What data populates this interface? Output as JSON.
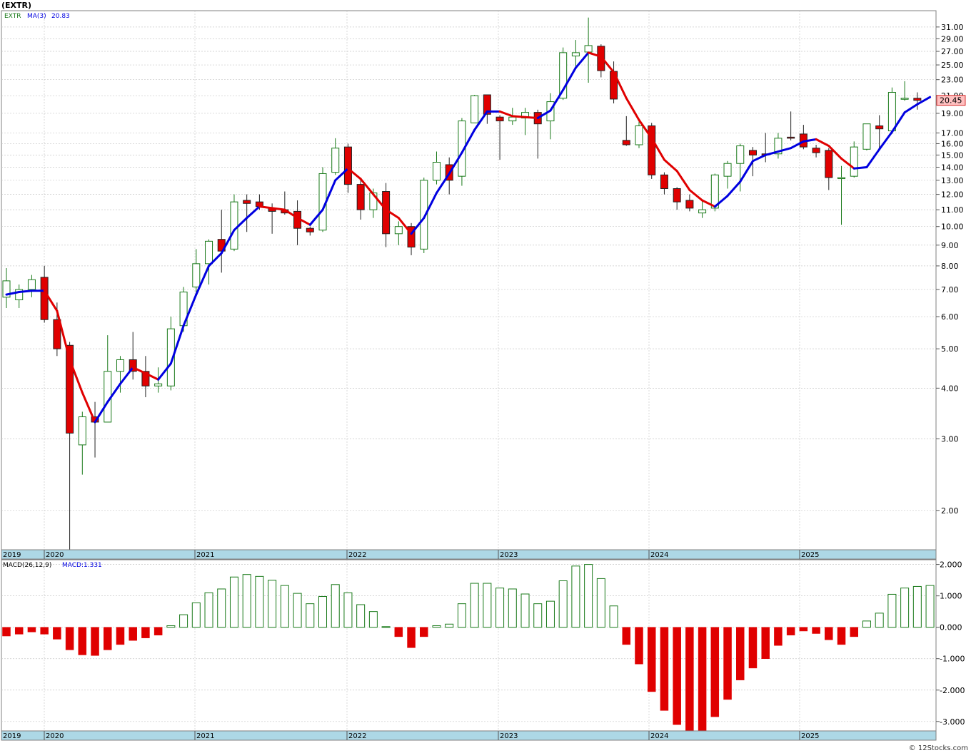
{
  "header": {
    "title": "(EXTR)",
    "symbol": "EXTR",
    "ma_label": "MA(3)",
    "ma_value": "20.83"
  },
  "macd_header": {
    "label": "MACD(26,12,9)",
    "value_label": "MACD:1.331"
  },
  "last_price": "20.45",
  "footer": {
    "credit": "© 12Stocks.com"
  },
  "colors": {
    "up": "#1a7a1a",
    "down": "#e00000",
    "ma_up": "#0000e0",
    "ma_down": "#e00000",
    "axis_band": "#add8e6",
    "grid": "#c8c8c8",
    "price_tag": "#ffc0c0"
  },
  "chart_data": [
    {
      "type": "candlestick",
      "scale": "log",
      "ylim": [
        1.6,
        34
      ],
      "grid": true,
      "y_ticks": [
        {
          "v": 2,
          "label": "2.00"
        },
        {
          "v": 3,
          "label": "3.00"
        },
        {
          "v": 4,
          "label": "4.00"
        },
        {
          "v": 5,
          "label": "5.00"
        },
        {
          "v": 6,
          "label": "6.00"
        },
        {
          "v": 7,
          "label": "7.00"
        },
        {
          "v": 8,
          "label": "8.00"
        },
        {
          "v": 9,
          "label": "9.00"
        },
        {
          "v": 10,
          "label": "10.00"
        },
        {
          "v": 11,
          "label": "11.00"
        },
        {
          "v": 12,
          "label": "12.00"
        },
        {
          "v": 13,
          "label": "13.00"
        },
        {
          "v": 14,
          "label": "14.00"
        },
        {
          "v": 15,
          "label": "15.00"
        },
        {
          "v": 16,
          "label": "16.00"
        },
        {
          "v": 17,
          "label": "17.00"
        },
        {
          "v": 19,
          "label": "19.00"
        },
        {
          "v": 21,
          "label": "21.00"
        },
        {
          "v": 23,
          "label": "23.00"
        },
        {
          "v": 25,
          "label": "25.00"
        },
        {
          "v": 27,
          "label": "27.00"
        },
        {
          "v": 29,
          "label": "29.00"
        },
        {
          "v": 31,
          "label": "31.00"
        }
      ],
      "x_labels": [
        "2019",
        "2020",
        "2021",
        "2022",
        "2023",
        "2024",
        "2025"
      ],
      "candles": [
        {
          "date": "2019-12",
          "o": 6.7,
          "h": 7.9,
          "l": 6.3,
          "c": 7.35
        },
        {
          "date": "2020-01",
          "o": 6.6,
          "h": 7.2,
          "l": 6.3,
          "c": 7.0
        },
        {
          "date": "2020-02",
          "o": 7.0,
          "h": 7.6,
          "l": 6.7,
          "c": 7.4
        },
        {
          "date": "2020-03",
          "o": 7.5,
          "h": 8.0,
          "l": 5.8,
          "c": 5.9
        },
        {
          "date": "2020-04",
          "o": 5.9,
          "h": 6.5,
          "l": 4.8,
          "c": 5.0
        },
        {
          "date": "2020-05",
          "o": 5.1,
          "h": 5.2,
          "l": 1.6,
          "c": 3.1
        },
        {
          "date": "2020-06",
          "o": 2.9,
          "h": 3.5,
          "l": 2.45,
          "c": 3.4
        },
        {
          "date": "2020-07",
          "o": 3.4,
          "h": 3.7,
          "l": 2.7,
          "c": 3.3
        },
        {
          "date": "2020-08",
          "o": 3.3,
          "h": 5.4,
          "l": 3.3,
          "c": 4.4
        },
        {
          "date": "2020-09",
          "o": 4.4,
          "h": 4.8,
          "l": 3.9,
          "c": 4.7
        },
        {
          "date": "2020-10",
          "o": 4.7,
          "h": 5.5,
          "l": 4.2,
          "c": 4.4
        },
        {
          "date": "2020-11",
          "o": 4.4,
          "h": 4.8,
          "l": 3.8,
          "c": 4.05
        },
        {
          "date": "2020-12",
          "o": 4.05,
          "h": 4.5,
          "l": 3.9,
          "c": 4.1
        },
        {
          "date": "2021-01",
          "o": 4.05,
          "h": 6.0,
          "l": 3.95,
          "c": 5.6
        },
        {
          "date": "2021-02",
          "o": 5.7,
          "h": 7.1,
          "l": 5.5,
          "c": 6.9
        },
        {
          "date": "2021-03",
          "o": 7.1,
          "h": 8.8,
          "l": 6.8,
          "c": 8.1
        },
        {
          "date": "2021-04",
          "o": 8.1,
          "h": 9.3,
          "l": 7.2,
          "c": 9.2
        },
        {
          "date": "2021-05",
          "o": 9.3,
          "h": 11.0,
          "l": 7.7,
          "c": 8.7
        },
        {
          "date": "2021-06",
          "o": 8.8,
          "h": 12.0,
          "l": 8.7,
          "c": 11.5
        },
        {
          "date": "2021-07",
          "o": 11.6,
          "h": 12.0,
          "l": 9.7,
          "c": 11.4
        },
        {
          "date": "2021-08",
          "o": 11.5,
          "h": 12.0,
          "l": 11.0,
          "c": 11.2
        },
        {
          "date": "2021-09",
          "o": 11.1,
          "h": 11.4,
          "l": 9.6,
          "c": 10.9
        },
        {
          "date": "2021-10",
          "o": 11.0,
          "h": 12.2,
          "l": 10.7,
          "c": 10.8
        },
        {
          "date": "2021-11",
          "o": 10.9,
          "h": 11.6,
          "l": 9.0,
          "c": 9.9
        },
        {
          "date": "2021-12",
          "o": 9.9,
          "h": 10.0,
          "l": 9.5,
          "c": 9.7
        },
        {
          "date": "2022-01",
          "o": 9.8,
          "h": 14.0,
          "l": 9.7,
          "c": 13.5
        },
        {
          "date": "2022-02",
          "o": 13.6,
          "h": 16.5,
          "l": 13.4,
          "c": 15.6
        },
        {
          "date": "2022-03",
          "o": 15.7,
          "h": 16.0,
          "l": 12.1,
          "c": 12.7
        },
        {
          "date": "2022-04",
          "o": 12.7,
          "h": 13.2,
          "l": 10.4,
          "c": 11.0
        },
        {
          "date": "2022-05",
          "o": 11.0,
          "h": 12.4,
          "l": 10.5,
          "c": 12.1
        },
        {
          "date": "2022-06",
          "o": 12.2,
          "h": 12.8,
          "l": 8.9,
          "c": 9.6
        },
        {
          "date": "2022-07",
          "o": 9.6,
          "h": 10.3,
          "l": 9.0,
          "c": 10.0
        },
        {
          "date": "2022-08",
          "o": 10.0,
          "h": 10.2,
          "l": 8.5,
          "c": 8.9
        },
        {
          "date": "2022-09",
          "o": 8.8,
          "h": 13.2,
          "l": 8.6,
          "c": 13.0
        },
        {
          "date": "2022-10",
          "o": 13.0,
          "h": 15.3,
          "l": 12.7,
          "c": 14.4
        },
        {
          "date": "2022-11",
          "o": 14.2,
          "h": 14.8,
          "l": 12.0,
          "c": 13.0
        },
        {
          "date": "2022-12",
          "o": 13.3,
          "h": 18.5,
          "l": 12.6,
          "c": 18.2
        },
        {
          "date": "2023-01",
          "o": 18.0,
          "h": 21.1,
          "l": 18.0,
          "c": 21.0
        },
        {
          "date": "2023-02",
          "o": 21.1,
          "h": 21.1,
          "l": 17.9,
          "c": 18.9
        },
        {
          "date": "2023-03",
          "o": 18.6,
          "h": 18.8,
          "l": 14.6,
          "c": 18.2
        },
        {
          "date": "2023-04",
          "o": 18.2,
          "h": 19.6,
          "l": 17.8,
          "c": 18.6
        },
        {
          "date": "2023-05",
          "o": 18.5,
          "h": 19.6,
          "l": 16.8,
          "c": 19.1
        },
        {
          "date": "2023-06",
          "o": 19.1,
          "h": 19.4,
          "l": 14.7,
          "c": 17.9
        },
        {
          "date": "2023-07",
          "o": 18.2,
          "h": 21.3,
          "l": 16.4,
          "c": 20.3
        },
        {
          "date": "2023-08",
          "o": 20.7,
          "h": 27.6,
          "l": 20.5,
          "c": 26.8
        },
        {
          "date": "2023-09",
          "o": 26.3,
          "h": 28.8,
          "l": 24.5,
          "c": 26.8
        },
        {
          "date": "2023-10",
          "o": 26.9,
          "h": 32.7,
          "l": 22.6,
          "c": 27.9
        },
        {
          "date": "2023-11",
          "o": 27.8,
          "h": 28.1,
          "l": 23.3,
          "c": 24.2
        },
        {
          "date": "2023-12",
          "o": 24.1,
          "h": 25.5,
          "l": 20.1,
          "c": 20.6
        },
        {
          "date": "2024-01",
          "o": 16.3,
          "h": 18.7,
          "l": 15.8,
          "c": 15.9
        },
        {
          "date": "2024-02",
          "o": 15.9,
          "h": 18.4,
          "l": 15.6,
          "c": 17.7
        },
        {
          "date": "2024-03",
          "o": 17.7,
          "h": 18.0,
          "l": 13.1,
          "c": 13.4
        },
        {
          "date": "2024-04",
          "o": 13.4,
          "h": 13.6,
          "l": 12.0,
          "c": 12.4
        },
        {
          "date": "2024-05",
          "o": 12.4,
          "h": 12.5,
          "l": 11.0,
          "c": 11.5
        },
        {
          "date": "2024-06",
          "o": 11.6,
          "h": 12.0,
          "l": 10.9,
          "c": 11.1
        },
        {
          "date": "2024-07",
          "o": 10.8,
          "h": 11.6,
          "l": 10.5,
          "c": 11.0
        },
        {
          "date": "2024-08",
          "o": 11.1,
          "h": 13.5,
          "l": 10.9,
          "c": 13.4
        },
        {
          "date": "2024-09",
          "o": 13.3,
          "h": 14.5,
          "l": 12.4,
          "c": 14.3
        },
        {
          "date": "2024-10",
          "o": 14.3,
          "h": 16.0,
          "l": 12.2,
          "c": 15.8
        },
        {
          "date": "2024-11",
          "o": 15.4,
          "h": 15.7,
          "l": 13.3,
          "c": 15.0
        },
        {
          "date": "2024-12",
          "o": 15.1,
          "h": 17.0,
          "l": 14.4,
          "c": 15.0
        },
        {
          "date": "2025-01",
          "o": 15.1,
          "h": 17.0,
          "l": 14.7,
          "c": 16.5
        },
        {
          "date": "2025-02",
          "o": 16.6,
          "h": 19.2,
          "l": 16.3,
          "c": 16.5
        },
        {
          "date": "2025-03",
          "o": 16.9,
          "h": 17.8,
          "l": 15.5,
          "c": 15.7
        },
        {
          "date": "2025-04",
          "o": 15.6,
          "h": 15.9,
          "l": 14.8,
          "c": 15.2
        },
        {
          "date": "2025-05",
          "o": 15.4,
          "h": 15.6,
          "l": 12.3,
          "c": 13.2
        },
        {
          "date": "2025-06",
          "o": 13.2,
          "h": 14.1,
          "l": 10.1,
          "c": 13.2
        },
        {
          "date": "2025-07",
          "o": 13.3,
          "h": 16.2,
          "l": 13.2,
          "c": 15.7
        },
        {
          "date": "2025-08",
          "o": 15.5,
          "h": 17.9,
          "l": 15.4,
          "c": 17.9
        },
        {
          "date": "2025-09",
          "o": 17.7,
          "h": 18.8,
          "l": 15.5,
          "c": 17.4
        },
        {
          "date": "2025-10",
          "o": 17.2,
          "h": 22.0,
          "l": 16.9,
          "c": 21.4
        },
        {
          "date": "2025-11",
          "o": 20.7,
          "h": 22.8,
          "l": 20.4,
          "c": 20.7
        },
        {
          "date": "2025-12",
          "o": 20.7,
          "h": 21.4,
          "l": 19.4,
          "c": 20.45
        }
      ],
      "ma_values": [
        6.8,
        6.9,
        6.95,
        6.95,
        6.2,
        4.7,
        3.9,
        3.3,
        3.7,
        4.1,
        4.5,
        4.35,
        4.2,
        4.6,
        5.7,
        6.8,
        8.0,
        8.6,
        9.8,
        10.5,
        11.2,
        11.1,
        11.0,
        10.5,
        10.1,
        11.0,
        13.0,
        13.9,
        13.1,
        12.0,
        11.0,
        10.5,
        9.6,
        10.5,
        12.1,
        13.5,
        15.2,
        17.3,
        19.2,
        19.2,
        18.7,
        18.6,
        18.5,
        19.3,
        21.7,
        24.6,
        26.8,
        26.2,
        24.0,
        20.7,
        18.3,
        16.5,
        14.6,
        13.7,
        12.3,
        11.6,
        11.2,
        11.9,
        12.9,
        14.5,
        15.0,
        15.3,
        15.6,
        16.2,
        16.4,
        15.8,
        14.7,
        13.9,
        14.0,
        15.5,
        17.1,
        19.1,
        20.0,
        20.83
      ]
    },
    {
      "type": "bar",
      "ylim": [
        -3.3,
        2.15
      ],
      "grid": true,
      "y_ticks": [
        {
          "v": 2,
          "label": "2.000"
        },
        {
          "v": 1,
          "label": "1.000"
        },
        {
          "v": 0,
          "label": "0.000"
        },
        {
          "v": -1,
          "label": "-1.000"
        },
        {
          "v": -2,
          "label": "-2.000"
        },
        {
          "v": -3,
          "label": "-3.000"
        }
      ],
      "x_labels": [
        "2019",
        "2020",
        "2021",
        "2022",
        "2023",
        "2024",
        "2025"
      ],
      "values": [
        -0.28,
        -0.22,
        -0.15,
        -0.22,
        -0.38,
        -0.72,
        -0.88,
        -0.9,
        -0.72,
        -0.55,
        -0.42,
        -0.34,
        -0.25,
        0.05,
        0.4,
        0.78,
        1.1,
        1.22,
        1.6,
        1.68,
        1.62,
        1.5,
        1.33,
        1.08,
        0.75,
        0.98,
        1.36,
        1.1,
        0.72,
        0.5,
        0.02,
        -0.3,
        -0.65,
        -0.3,
        0.05,
        0.1,
        0.75,
        1.4,
        1.4,
        1.25,
        1.22,
        1.06,
        0.75,
        0.83,
        1.48,
        1.95,
        2.0,
        1.55,
        0.68,
        -0.55,
        -1.17,
        -2.05,
        -2.65,
        -3.1,
        -3.3,
        -3.3,
        -2.85,
        -2.3,
        -1.68,
        -1.3,
        -1.0,
        -0.58,
        -0.25,
        -0.12,
        -0.2,
        -0.4,
        -0.55,
        -0.3,
        0.2,
        0.45,
        1.05,
        1.25,
        1.3,
        1.331
      ]
    }
  ]
}
